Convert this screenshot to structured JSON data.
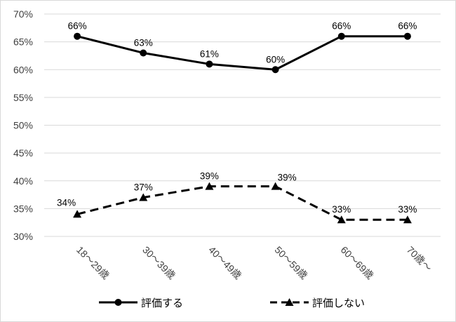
{
  "chart_data": {
    "type": "line",
    "categories": [
      "18～29歳",
      "30～39歳",
      "40～49歳",
      "50～59歳",
      "60～69歳",
      "70歳～"
    ],
    "ylim": [
      30,
      70
    ],
    "yticks": [
      "30%",
      "35%",
      "40%",
      "45%",
      "50%",
      "55%",
      "60%",
      "65%",
      "70%"
    ],
    "grid": true,
    "legend_position": "bottom",
    "series": [
      {
        "name": "評価する",
        "values": [
          66,
          63,
          61,
          60,
          66,
          66
        ],
        "labels": [
          "66%",
          "63%",
          "61%",
          "60%",
          "66%",
          "66%"
        ],
        "line_style": "solid",
        "marker": "circle",
        "color": "#000000"
      },
      {
        "name": "評価しない",
        "values": [
          34,
          37,
          39,
          39,
          33,
          33
        ],
        "labels": [
          "34%",
          "37%",
          "39%",
          "39%",
          "33%",
          "33%"
        ],
        "line_style": "dashed",
        "marker": "triangle",
        "color": "#000000"
      }
    ]
  }
}
